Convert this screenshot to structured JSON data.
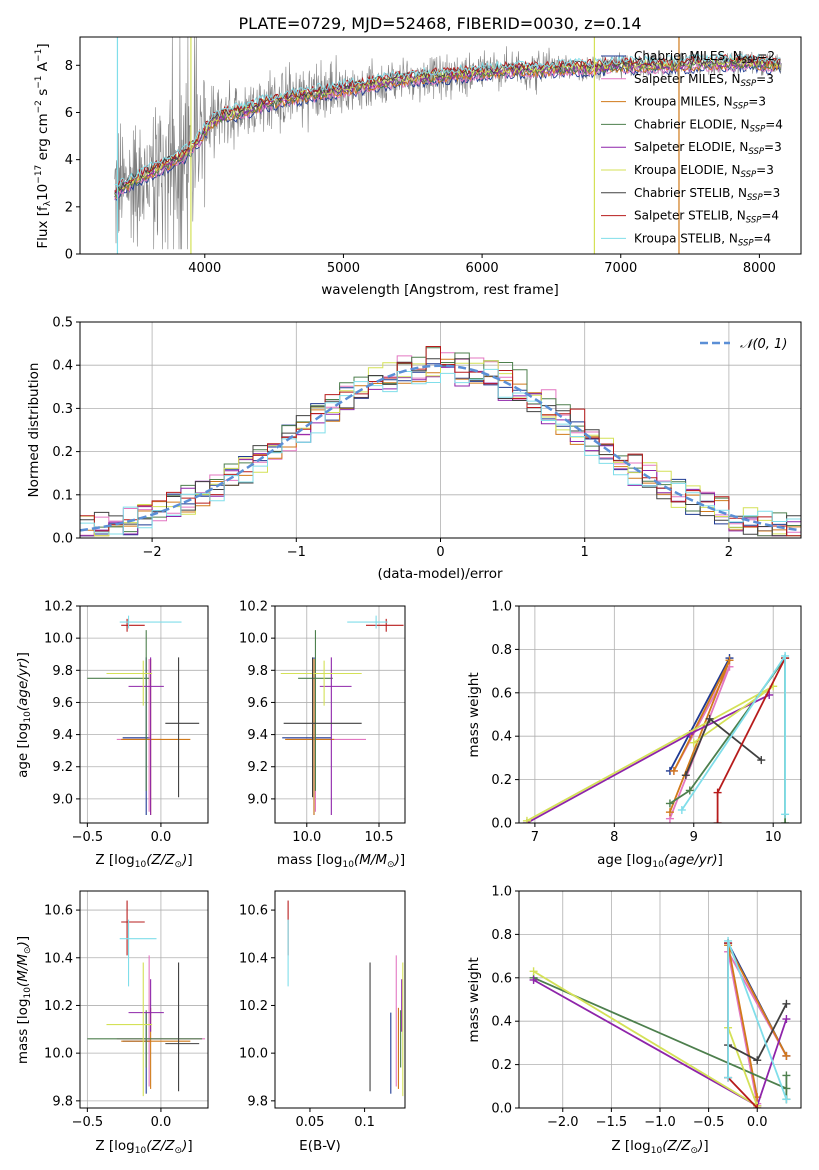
{
  "chart_data": [
    {
      "id": "spectrum",
      "type": "line",
      "title": "PLATE=0729, MJD=52468, FIBERID=0030, z=0.14",
      "xlabel": "wavelength [Angstrom, rest frame]",
      "ylabel": "Flux [f$_\\lambda$10$^{-17}$ erg cm$^{-2}$ s$^{-1}$ A$^{-1}$]",
      "xlim": [
        3100,
        8300
      ],
      "ylim": [
        0,
        9.2
      ],
      "xticks": [
        4000,
        5000,
        6000,
        7000,
        8000
      ],
      "yticks": [
        0,
        2,
        4,
        6,
        8
      ],
      "data_color": "#808080",
      "continuum_x": [
        3350,
        3450,
        3550,
        3650,
        3750,
        3850,
        3950,
        4050,
        4150,
        4300,
        4450,
        4600,
        4800,
        5000,
        5200,
        5400,
        5600,
        5800,
        6000,
        6200,
        6400,
        6600,
        6800,
        7000,
        7200,
        7400,
        7600,
        7800,
        8000,
        8150
      ],
      "continuum_y": [
        2.6,
        3.0,
        3.3,
        3.6,
        3.9,
        4.2,
        4.8,
        5.6,
        5.9,
        6.1,
        6.4,
        6.6,
        6.8,
        7.0,
        7.2,
        7.4,
        7.5,
        7.6,
        7.7,
        7.8,
        7.8,
        7.9,
        7.9,
        8.0,
        8.0,
        8.0,
        8.1,
        8.1,
        8.1,
        8.0
      ],
      "legend_position": "upper-right",
      "legend": [
        {
          "name": "Chabrier MILES",
          "nssp": "2",
          "color": "#1f3a93"
        },
        {
          "name": "Salpeter MILES",
          "nssp": "3",
          "color": "#e377c2"
        },
        {
          "name": "Kroupa MILES",
          "nssp": "3",
          "color": "#d17a1a"
        },
        {
          "name": "Chabrier ELODIE",
          "nssp": "4",
          "color": "#4d7f4d"
        },
        {
          "name": "Salpeter ELODIE",
          "nssp": "3",
          "color": "#8e24aa"
        },
        {
          "name": "Kroupa ELODIE",
          "nssp": "3",
          "color": "#d4e157"
        },
        {
          "name": "Chabrier STELIB",
          "nssp": "3",
          "color": "#404040"
        },
        {
          "name": "Salpeter STELIB",
          "nssp": "4",
          "color": "#b71c1c"
        },
        {
          "name": "Kroupa STELIB",
          "nssp": "4",
          "color": "#80deea"
        }
      ]
    },
    {
      "id": "residuals",
      "type": "histogram",
      "xlabel": "(data-model)/error",
      "ylabel": "Normed distribution",
      "xlim": [
        -2.5,
        2.5
      ],
      "ylim": [
        0,
        0.5
      ],
      "xticks": [
        -2,
        -1,
        0,
        1,
        2
      ],
      "yticks": [
        0.0,
        0.1,
        0.2,
        0.3,
        0.4,
        0.5
      ],
      "grid": true,
      "bin_width": 0.1,
      "bin_start": -2.5,
      "legend_position": "upper-right",
      "legend": {
        "name": "𝒩(0, 1)",
        "color": "#5b8fd6",
        "style": "dashed"
      },
      "series_colors": [
        "#1f3a93",
        "#e377c2",
        "#d17a1a",
        "#4d7f4d",
        "#8e24aa",
        "#d4e157",
        "#404040",
        "#b71c1c",
        "#80deea"
      ],
      "offsets": [
        0.0,
        0.012,
        -0.01,
        0.018,
        -0.015,
        0.008,
        -0.006,
        0.02,
        -0.018
      ]
    },
    {
      "id": "age-vs-z",
      "type": "errorbar",
      "xlabel": "Z [log$_{10}$(Z/Z$_\\odot$)]",
      "ylabel": "age  [log$_{10}$(age/yr)]",
      "xlim": [
        -0.55,
        0.32
      ],
      "ylim": [
        8.85,
        10.2
      ],
      "xticks": [
        -0.5,
        0.0
      ],
      "yticks": [
        9.0,
        9.2,
        9.4,
        9.6,
        9.8,
        10.0,
        10.2
      ],
      "grid": true,
      "points": [
        {
          "x": -0.1,
          "xerr": [
            0.16,
            0.03
          ],
          "y": 9.38,
          "yerr": [
            0.48,
            0.5
          ],
          "color": "#1f3a93"
        },
        {
          "x": -0.08,
          "xerr": [
            0.22,
            0.08
          ],
          "y": 9.37,
          "yerr": [
            0.45,
            0.5
          ],
          "color": "#e377c2"
        },
        {
          "x": -0.07,
          "xerr": [
            0.2,
            0.27
          ],
          "y": 9.37,
          "yerr": [
            0.47,
            0.5
          ],
          "color": "#d17a1a"
        },
        {
          "x": -0.1,
          "xerr": [
            0.4,
            0.02
          ],
          "y": 9.75,
          "yerr": [
            0.7,
            0.3
          ],
          "color": "#4d7f4d"
        },
        {
          "x": -0.07,
          "xerr": [
            0.15,
            0.09
          ],
          "y": 9.7,
          "yerr": [
            0.8,
            0.18
          ],
          "color": "#8e24aa"
        },
        {
          "x": -0.12,
          "xerr": [
            0.25,
            0.06
          ],
          "y": 9.78,
          "yerr": [
            0.2,
            0.08
          ],
          "color": "#d4e157"
        },
        {
          "x": 0.12,
          "xerr": [
            0.09,
            0.14
          ],
          "y": 9.47,
          "yerr": [
            0.46,
            0.41
          ],
          "color": "#404040"
        },
        {
          "x": -0.23,
          "xerr": [
            0.04,
            0.12
          ],
          "y": 10.08,
          "yerr": [
            0.04,
            0.04
          ],
          "color": "#b71c1c"
        },
        {
          "x": -0.22,
          "xerr": [
            0.06,
            0.36
          ],
          "y": 10.1,
          "yerr": [
            0.04,
            0.04
          ],
          "color": "#80deea"
        }
      ]
    },
    {
      "id": "age-vs-mass",
      "type": "errorbar",
      "xlabel": "mass [log$_{10}$(M/M$_\\odot$)]",
      "ylabel": "",
      "xlim": [
        9.78,
        10.68
      ],
      "ylim": [
        8.85,
        10.2
      ],
      "xticks": [
        10.0,
        10.5
      ],
      "yticks": [
        9.0,
        9.2,
        9.4,
        9.6,
        9.8,
        10.0,
        10.2
      ],
      "grid": true,
      "points": [
        {
          "x": 10.05,
          "xerr": [
            0.22,
            0.12
          ],
          "y": 9.38,
          "yerr": [
            0.48,
            0.5
          ],
          "color": "#1f3a93"
        },
        {
          "x": 10.06,
          "xerr": [
            0.2,
            0.35
          ],
          "y": 9.37,
          "yerr": [
            0.45,
            0.5
          ],
          "color": "#e377c2"
        },
        {
          "x": 10.05,
          "xerr": [
            0.2,
            0.14
          ],
          "y": 9.37,
          "yerr": [
            0.47,
            0.5
          ],
          "color": "#d17a1a"
        },
        {
          "x": 10.06,
          "xerr": [
            0.12,
            0.12
          ],
          "y": 9.75,
          "yerr": [
            0.7,
            0.3
          ],
          "color": "#4d7f4d"
        },
        {
          "x": 10.17,
          "xerr": [
            0.08,
            0.14
          ],
          "y": 9.7,
          "yerr": [
            0.8,
            0.18
          ],
          "color": "#8e24aa"
        },
        {
          "x": 10.12,
          "xerr": [
            0.3,
            0.26
          ],
          "y": 9.78,
          "yerr": [
            0.2,
            0.08
          ],
          "color": "#d4e157"
        },
        {
          "x": 10.04,
          "xerr": [
            0.2,
            0.34
          ],
          "y": 9.47,
          "yerr": [
            0.46,
            0.41
          ],
          "color": "#404040"
        },
        {
          "x": 10.55,
          "xerr": [
            0.14,
            0.12
          ],
          "y": 10.08,
          "yerr": [
            0.04,
            0.04
          ],
          "color": "#b71c1c"
        },
        {
          "x": 10.48,
          "xerr": [
            0.2,
            0.08
          ],
          "y": 10.1,
          "yerr": [
            0.04,
            0.04
          ],
          "color": "#80deea"
        }
      ]
    },
    {
      "id": "weight-vs-age",
      "type": "line",
      "xlabel": "age  [log$_{10}$(age/yr)]",
      "ylabel": "mass weight",
      "xlim": [
        6.8,
        10.35
      ],
      "ylim": [
        0,
        1.0
      ],
      "xticks": [
        7,
        8,
        9,
        10
      ],
      "yticks": [
        0.0,
        0.2,
        0.4,
        0.6,
        0.8,
        1.0
      ],
      "grid": true,
      "series": [
        {
          "color": "#1f3a93",
          "x": [
            8.7,
            9.45
          ],
          "y": [
            0.24,
            0.76
          ]
        },
        {
          "color": "#e377c2",
          "x": [
            8.7,
            9.45,
            8.75
          ],
          "y": [
            0.02,
            0.72,
            0.24
          ]
        },
        {
          "color": "#d17a1a",
          "x": [
            8.7,
            9.45,
            8.75
          ],
          "y": [
            0.05,
            0.75,
            0.24
          ]
        },
        {
          "color": "#4d7f4d",
          "x": [
            8.7,
            8.95,
            10.15,
            10.15
          ],
          "y": [
            0.09,
            0.15,
            0.76,
            0.0
          ]
        },
        {
          "color": "#8e24aa",
          "x": [
            6.9,
            8.95,
            9.95
          ],
          "y": [
            0.0,
            0.41,
            0.59
          ]
        },
        {
          "color": "#d4e157",
          "x": [
            6.9,
            10.0,
            9.0
          ],
          "y": [
            0.01,
            0.63,
            0.37
          ]
        },
        {
          "color": "#404040",
          "x": [
            8.9,
            9.2,
            9.85
          ],
          "y": [
            0.22,
            0.48,
            0.29
          ]
        },
        {
          "color": "#b71c1c",
          "x": [
            9.3,
            9.3,
            10.15
          ],
          "y": [
            0.0,
            0.14,
            0.76
          ]
        },
        {
          "color": "#80deea",
          "x": [
            8.85,
            10.15,
            10.15
          ],
          "y": [
            0.06,
            0.77,
            0.04
          ]
        }
      ]
    },
    {
      "id": "mass-vs-z",
      "type": "errorbar",
      "xlabel": "Z [log$_{10}$(Z/Z$_\\odot$)]",
      "ylabel": "mass [log$_{10}$(M/M$_\\odot$)]",
      "xlim": [
        -0.55,
        0.32
      ],
      "ylim": [
        9.77,
        10.68
      ],
      "xticks": [
        -0.5,
        0.0
      ],
      "yticks": [
        9.8,
        10.0,
        10.2,
        10.4,
        10.6
      ],
      "grid": true,
      "points": [
        {
          "x": -0.1,
          "xerr": [
            0.16,
            0.03
          ],
          "y": 10.05,
          "yerr": [
            0.22,
            0.12
          ],
          "color": "#1f3a93"
        },
        {
          "x": -0.08,
          "xerr": [
            0.22,
            0.38
          ],
          "y": 10.06,
          "yerr": [
            0.2,
            0.35
          ],
          "color": "#e377c2"
        },
        {
          "x": -0.07,
          "xerr": [
            0.2,
            0.27
          ],
          "y": 10.05,
          "yerr": [
            0.2,
            0.14
          ],
          "color": "#d17a1a"
        },
        {
          "x": -0.1,
          "xerr": [
            0.4,
            0.38
          ],
          "y": 10.06,
          "yerr": [
            0.12,
            0.12
          ],
          "color": "#4d7f4d"
        },
        {
          "x": -0.07,
          "xerr": [
            0.15,
            0.09
          ],
          "y": 10.17,
          "yerr": [
            0.08,
            0.14
          ],
          "color": "#8e24aa"
        },
        {
          "x": -0.12,
          "xerr": [
            0.25,
            0.06
          ],
          "y": 10.12,
          "yerr": [
            0.3,
            0.26
          ],
          "color": "#d4e157"
        },
        {
          "x": 0.12,
          "xerr": [
            0.09,
            0.14
          ],
          "y": 10.04,
          "yerr": [
            0.2,
            0.34
          ],
          "color": "#404040"
        },
        {
          "x": -0.23,
          "xerr": [
            0.04,
            0.12
          ],
          "y": 10.55,
          "yerr": [
            0.14,
            0.09
          ],
          "color": "#b71c1c"
        },
        {
          "x": -0.22,
          "xerr": [
            0.06,
            0.19
          ],
          "y": 10.48,
          "yerr": [
            0.2,
            0.08
          ],
          "color": "#80deea"
        }
      ]
    },
    {
      "id": "mass-vs-ebv",
      "type": "errorbar",
      "xlabel": "E(B-V)",
      "ylabel": "",
      "xlim": [
        0.018,
        0.137
      ],
      "ylim": [
        9.77,
        10.68
      ],
      "xticks": [
        0.05,
        0.1
      ],
      "yticks": [
        9.8,
        10.0,
        10.2,
        10.4,
        10.6
      ],
      "grid": false,
      "points": [
        {
          "x": 0.124,
          "y": 10.05,
          "yerr": [
            0.22,
            0.12
          ],
          "color": "#1f3a93"
        },
        {
          "x": 0.129,
          "y": 10.06,
          "yerr": [
            0.2,
            0.35
          ],
          "color": "#e377c2"
        },
        {
          "x": 0.131,
          "y": 10.05,
          "yerr": [
            0.2,
            0.14
          ],
          "color": "#d17a1a"
        },
        {
          "x": 0.133,
          "y": 10.06,
          "yerr": [
            0.12,
            0.12
          ],
          "color": "#4d7f4d"
        },
        {
          "x": 0.134,
          "y": 10.17,
          "yerr": [
            0.08,
            0.14
          ],
          "color": "#8e24aa"
        },
        {
          "x": 0.135,
          "y": 10.12,
          "yerr": [
            0.3,
            0.26
          ],
          "color": "#d4e157"
        },
        {
          "x": 0.105,
          "y": 10.04,
          "yerr": [
            0.2,
            0.34
          ],
          "color": "#404040"
        },
        {
          "x": 0.03,
          "y": 10.55,
          "yerr": [
            0.14,
            0.09
          ],
          "color": "#b71c1c"
        },
        {
          "x": 0.03,
          "y": 10.48,
          "yerr": [
            0.2,
            0.08
          ],
          "color": "#80deea"
        }
      ]
    },
    {
      "id": "weight-vs-z",
      "type": "line",
      "xlabel": "Z [log$_{10}$(Z/Z$_\\odot$)]",
      "ylabel": "mass weight",
      "xlim": [
        -2.45,
        0.45
      ],
      "ylim": [
        0,
        1.0
      ],
      "xticks": [
        -2.0,
        -1.5,
        -1.0,
        -0.5,
        0.0
      ],
      "yticks": [
        0.0,
        0.2,
        0.4,
        0.6,
        0.8,
        1.0
      ],
      "grid": true,
      "series": [
        {
          "color": "#1f3a93",
          "x": [
            -0.3,
            0.3
          ],
          "y": [
            0.76,
            0.24
          ]
        },
        {
          "color": "#e377c2",
          "x": [
            0.0,
            -0.3,
            0.3
          ],
          "y": [
            0.02,
            0.72,
            0.24
          ]
        },
        {
          "color": "#d17a1a",
          "x": [
            0.0,
            -0.3,
            0.3
          ],
          "y": [
            0.05,
            0.75,
            0.24
          ]
        },
        {
          "color": "#4d7f4d",
          "x": [
            -2.3,
            0.3,
            0.3,
            0.3
          ],
          "y": [
            0.6,
            0.09,
            0.15,
            0.04
          ]
        },
        {
          "color": "#8e24aa",
          "x": [
            -2.3,
            0.0,
            0.3
          ],
          "y": [
            0.59,
            0.01,
            0.41
          ]
        },
        {
          "color": "#d4e157",
          "x": [
            -2.3,
            0.0,
            -0.3
          ],
          "y": [
            0.63,
            0.01,
            0.37
          ]
        },
        {
          "color": "#404040",
          "x": [
            -0.3,
            0.0,
            0.3
          ],
          "y": [
            0.29,
            0.22,
            0.48
          ]
        },
        {
          "color": "#b71c1c",
          "x": [
            0.0,
            -0.3,
            -0.3
          ],
          "y": [
            0.0,
            0.14,
            0.76
          ]
        },
        {
          "color": "#80deea",
          "x": [
            0.3,
            -0.3,
            -0.3
          ],
          "y": [
            0.04,
            0.77,
            0.14
          ]
        }
      ]
    }
  ]
}
